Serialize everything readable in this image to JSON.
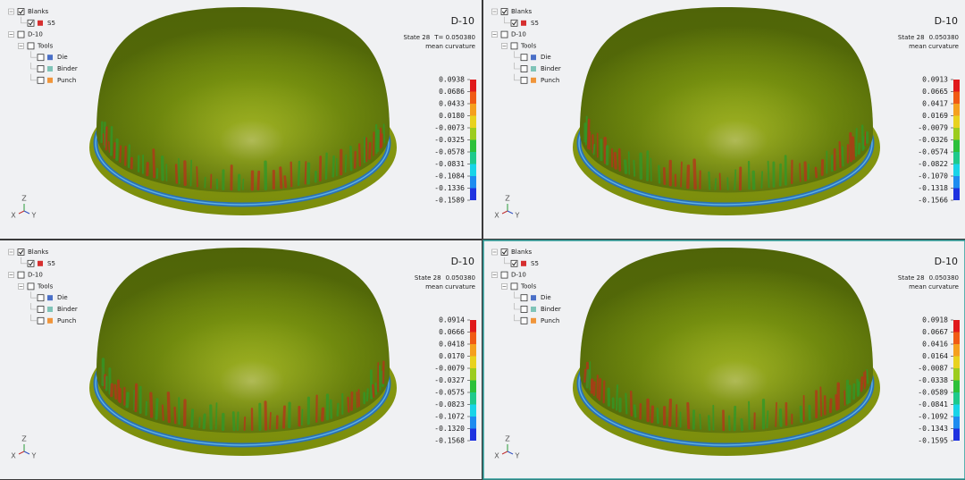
{
  "panels": [
    {
      "title": "D-10",
      "state": "State 28",
      "time": "T= 0.050380",
      "quantity": "mean curvature",
      "active": false,
      "tree": [
        {
          "label": "Blanks",
          "checked": true,
          "children": [
            {
              "label": "S5",
              "checked": true,
              "color": "#d62f2f"
            }
          ]
        },
        {
          "label": "D-10",
          "checked": false,
          "children": [
            {
              "label": "Tools",
              "checked": false,
              "children": [
                {
                  "label": "Die",
                  "checked": false,
                  "color": "#4a6fc7"
                },
                {
                  "label": "Binder",
                  "checked": false,
                  "color": "#7fc4b8"
                },
                {
                  "label": "Punch",
                  "checked": false,
                  "color": "#f0953a"
                }
              ]
            }
          ]
        }
      ],
      "legend": {
        "labels": [
          "0.0938",
          "0.0686",
          "0.0433",
          "0.0180",
          "-0.0073",
          "-0.0325",
          "-0.0578",
          "-0.0831",
          "-0.1084",
          "-0.1336",
          "-0.1589"
        ]
      },
      "axes": {
        "z": "Z",
        "x": "X",
        "y": "Y"
      }
    },
    {
      "title": "D-10",
      "state": "State 28",
      "time": "0.050380",
      "quantity": "mean curvature",
      "active": false,
      "tree": [
        {
          "label": "Blanks",
          "checked": true,
          "children": [
            {
              "label": "S5",
              "checked": true,
              "color": "#d62f2f"
            }
          ]
        },
        {
          "label": "D-10",
          "checked": false,
          "children": [
            {
              "label": "Tools",
              "checked": false,
              "children": [
                {
                  "label": "Die",
                  "checked": false,
                  "color": "#4a6fc7"
                },
                {
                  "label": "Binder",
                  "checked": false,
                  "color": "#7fc4b8"
                },
                {
                  "label": "Punch",
                  "checked": false,
                  "color": "#f0953a"
                }
              ]
            }
          ]
        }
      ],
      "legend": {
        "labels": [
          "0.0913",
          "0.0665",
          "0.0417",
          "0.0169",
          "-0.0079",
          "-0.0326",
          "-0.0574",
          "-0.0822",
          "-0.1070",
          "-0.1318",
          "-0.1566"
        ]
      },
      "axes": {
        "z": "Z",
        "x": "X",
        "y": "Y"
      }
    },
    {
      "title": "D-10",
      "state": "State 28",
      "time": "0.050380",
      "quantity": "mean curvature",
      "active": false,
      "tree": [
        {
          "label": "Blanks",
          "checked": true,
          "children": [
            {
              "label": "S5",
              "checked": true,
              "color": "#d62f2f"
            }
          ]
        },
        {
          "label": "D-10",
          "checked": false,
          "children": [
            {
              "label": "Tools",
              "checked": false,
              "children": [
                {
                  "label": "Die",
                  "checked": false,
                  "color": "#4a6fc7"
                },
                {
                  "label": "Binder",
                  "checked": false,
                  "color": "#7fc4b8"
                },
                {
                  "label": "Punch",
                  "checked": false,
                  "color": "#f0953a"
                }
              ]
            }
          ]
        }
      ],
      "legend": {
        "labels": [
          "0.0914",
          "0.0666",
          "0.0418",
          "0.0170",
          "-0.0079",
          "-0.0327",
          "-0.0575",
          "-0.0823",
          "-0.1072",
          "-0.1320",
          "-0.1568"
        ]
      },
      "axes": {
        "z": "Z",
        "x": "X",
        "y": "Y"
      }
    },
    {
      "title": "D-10",
      "state": "State 28",
      "time": "0.050380",
      "quantity": "mean curvature",
      "active": true,
      "tree": [
        {
          "label": "Blanks",
          "checked": true,
          "children": [
            {
              "label": "S5",
              "checked": true,
              "color": "#d62f2f"
            }
          ]
        },
        {
          "label": "D-10",
          "checked": false,
          "children": [
            {
              "label": "Tools",
              "checked": false,
              "children": [
                {
                  "label": "Die",
                  "checked": false,
                  "color": "#4a6fc7"
                },
                {
                  "label": "Binder",
                  "checked": false,
                  "color": "#7fc4b8"
                },
                {
                  "label": "Punch",
                  "checked": false,
                  "color": "#f0953a"
                }
              ]
            }
          ]
        }
      ],
      "legend": {
        "labels": [
          "0.0918",
          "0.0667",
          "0.0416",
          "0.0164",
          "-0.0087",
          "-0.0338",
          "-0.0589",
          "-0.0841",
          "-0.1092",
          "-0.1343",
          "-0.1595"
        ]
      },
      "axes": {
        "z": "Z",
        "x": "X",
        "y": "Y"
      }
    }
  ],
  "legend_colors": [
    "#e0191b",
    "#f05a14",
    "#f5a01e",
    "#e8d21e",
    "#9ccc1e",
    "#2cc03a",
    "#1ec98c",
    "#18d4e8",
    "#1e8cf0",
    "#1e32e0"
  ]
}
